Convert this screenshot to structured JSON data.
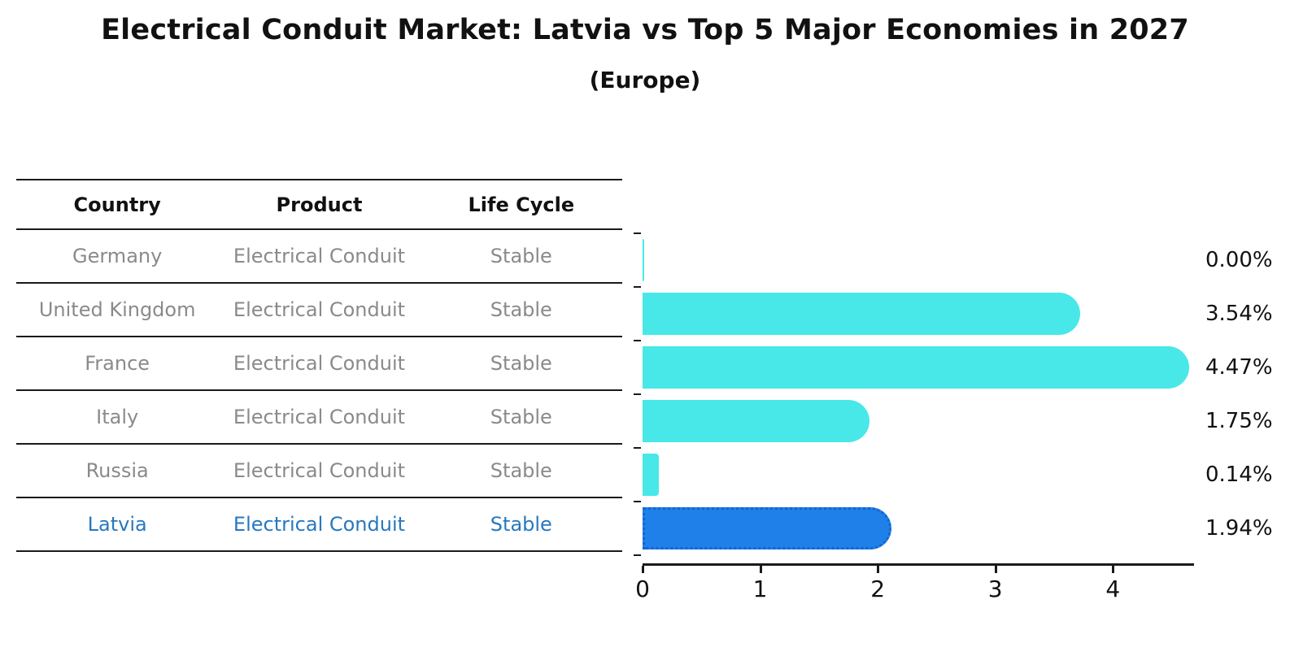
{
  "title": "Electrical Conduit Market: Latvia vs Top 5 Major Economies in 2027",
  "subtitle": "(Europe)",
  "table": {
    "headers": [
      "Country",
      "Product",
      "Life Cycle"
    ],
    "rows": [
      {
        "country": "Germany",
        "product": "Electrical Conduit",
        "life_cycle": "Stable",
        "highlight": false
      },
      {
        "country": "United Kingdom",
        "product": "Electrical Conduit",
        "life_cycle": "Stable",
        "highlight": false
      },
      {
        "country": "France",
        "product": "Electrical Conduit",
        "life_cycle": "Stable",
        "highlight": false
      },
      {
        "country": "Italy",
        "product": "Electrical Conduit",
        "life_cycle": "Stable",
        "highlight": false
      },
      {
        "country": "Russia",
        "product": "Electrical Conduit",
        "life_cycle": "Stable",
        "highlight": false
      },
      {
        "country": "Latvia",
        "product": "Electrical Conduit",
        "life_cycle": "Stable",
        "highlight": true
      }
    ]
  },
  "chart_data": {
    "type": "bar",
    "orientation": "horizontal",
    "title": "Electrical Conduit Market: Latvia vs Top 5 Major Economies in 2027",
    "subtitle": "(Europe)",
    "categories": [
      "Germany",
      "United Kingdom",
      "France",
      "Italy",
      "Russia",
      "Latvia"
    ],
    "values": [
      0.0,
      3.54,
      4.47,
      1.75,
      0.14,
      1.94
    ],
    "labels": [
      "0.00%",
      "3.54%",
      "4.47%",
      "1.75%",
      "0.14%",
      "1.94%"
    ],
    "unit": "%",
    "x_ticks": [
      0,
      1,
      2,
      3,
      4
    ],
    "xlim": [
      0,
      4.69
    ],
    "grid": false,
    "legend": "none",
    "highlight_index": 5,
    "colors": {
      "bar": "#48e8e8",
      "highlight_bar": "#1e80e8",
      "highlight_border": "#1565d0",
      "highlight_text": "#2878be",
      "table_text": "#8a8a8a",
      "axis": "#1a1a1a"
    }
  }
}
